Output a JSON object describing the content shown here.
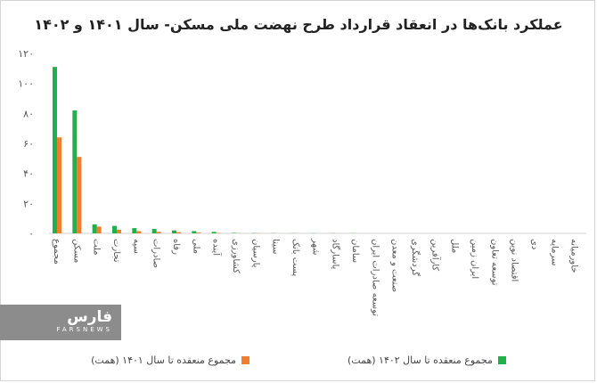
{
  "chart_data": {
    "type": "bar",
    "title": "عملکرد بانک‌ها در انعقاد قرارداد طرح نهضت ملی مسکن- سال ۱۴۰۱ و ۱۴۰۲",
    "categories": [
      "مجموع",
      "مسکن",
      "ملت",
      "تجارت",
      "سپه",
      "صادرات",
      "رفاه",
      "ملی",
      "آینده",
      "کشاورزی",
      "پارسیان",
      "سینا",
      "پست بانک",
      "شهر",
      "پاسارگاد",
      "سامان",
      "توسعه صادرات ایران",
      "صنعت و معدن",
      "گردشگری",
      "کارآفرین",
      "ملل",
      "ایران زمین",
      "توسعه تعاون",
      "اقتصاد نوین",
      "دی",
      "سرمایه",
      "خاورمیانه"
    ],
    "series": [
      {
        "name": "مجموع منعقده تا سال ۱۴۰۲ (همت)",
        "color": "#1fb14a",
        "values": [
          111,
          82,
          6,
          5,
          3.5,
          3,
          2,
          1.5,
          1,
          0.3,
          0.2,
          0.1,
          0.1,
          0.1,
          0.1,
          0.1,
          0,
          0,
          0,
          0,
          0,
          0,
          0,
          0,
          0,
          0,
          0
        ]
      },
      {
        "name": "مجموع منعقده تا سال ۱۴۰۱ (همت)",
        "color": "#f07e2c",
        "values": [
          64,
          51,
          4.5,
          2.5,
          1.5,
          1,
          0.8,
          0.5,
          0.3,
          0.1,
          0.1,
          0,
          0,
          0,
          0,
          0,
          0,
          0,
          0,
          0,
          0,
          0,
          0,
          0,
          0,
          0,
          0
        ]
      }
    ],
    "yticks": [
      "۰",
      "۲۰",
      "۴۰",
      "۶۰",
      "۸۰",
      "۱۰۰",
      "۱۲۰"
    ],
    "ylim": [
      0,
      120
    ],
    "grid": false,
    "legend": "bottom"
  },
  "watermark": {
    "brand": "فارس",
    "sub": "FARSNEWS"
  }
}
